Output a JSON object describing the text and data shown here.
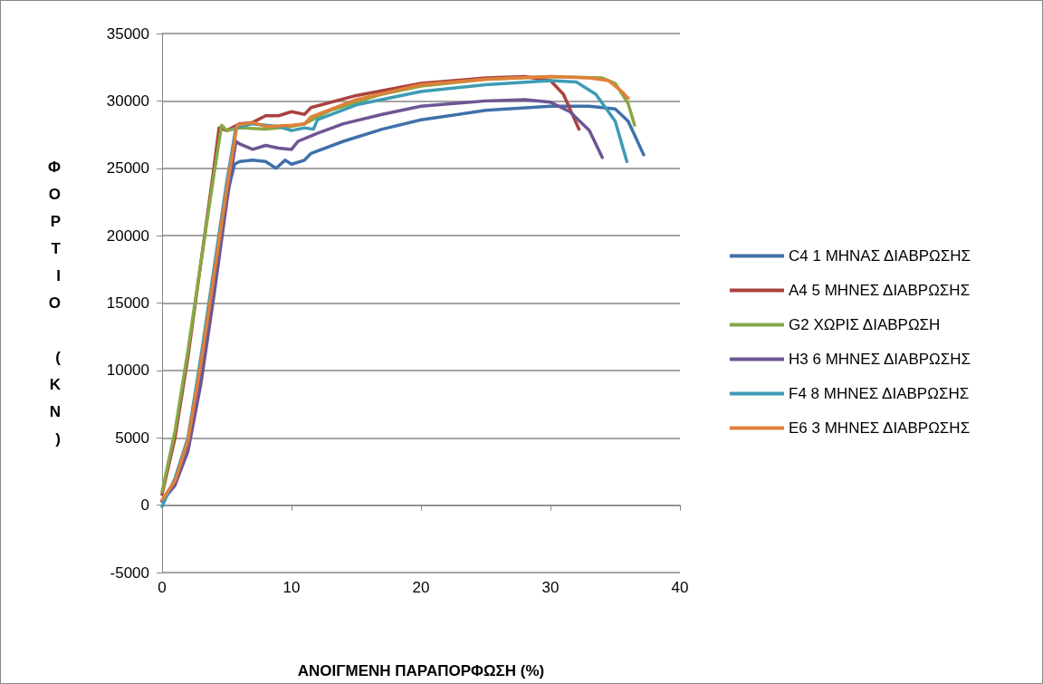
{
  "chart_data": {
    "type": "line",
    "xlabel": "ΑΝΟΙΓΜΕΝΗ ΠΑΡΑΠΟΡΦΩΣΗ (%)",
    "ylabel": "ΦΟΡΤΙΟ (ΚΝ)",
    "xlim": [
      0,
      40
    ],
    "xticks": [
      0,
      10,
      20,
      30,
      40
    ],
    "ylim": [
      -5000,
      35000
    ],
    "yticks": [
      -5000,
      0,
      5000,
      10000,
      15000,
      20000,
      25000,
      30000,
      35000
    ],
    "grid": "y",
    "legend": "right",
    "marker": "none",
    "line_style": "solid",
    "series": [
      {
        "name": "C4 1 ΜΗΝΑΣ ΔΙΑΒΡΩΣΗΣ",
        "color": "#4070aa",
        "x": [
          0,
          1,
          2,
          3,
          4,
          5,
          5.6,
          6,
          7,
          8,
          8.8,
          9.5,
          10,
          11,
          11.5,
          14,
          17,
          20,
          25,
          30,
          33,
          35,
          36,
          37.2
        ],
        "values": [
          300,
          1500,
          4500,
          10000,
          16500,
          23000,
          25300,
          25500,
          25600,
          25500,
          25000,
          25600,
          25300,
          25600,
          26100,
          27000,
          27900,
          28600,
          29300,
          29600,
          29600,
          29400,
          28500,
          26000
        ]
      },
      {
        "name": "Α4 5 ΜΗΝΕΣ ΔΙΑΒΡΩΣΗΣ",
        "color": "#aa423f",
        "x": [
          0,
          1,
          2,
          3,
          4,
          4.4,
          5,
          6,
          7,
          8,
          9,
          10,
          11,
          11.5,
          15,
          20,
          25,
          28,
          30,
          31,
          32.2
        ],
        "values": [
          800,
          5000,
          11000,
          18000,
          25000,
          28000,
          27800,
          28300,
          28400,
          28900,
          28900,
          29200,
          29000,
          29500,
          30400,
          31300,
          31700,
          31800,
          31500,
          30500,
          27900
        ]
      },
      {
        "name": "G2 ΧΩΡΙΣ ΔΙΑΒΡΩΣΗ",
        "color": "#87a845",
        "x": [
          0,
          1,
          2,
          3,
          4,
          4.6,
          5,
          6,
          8,
          10,
          11,
          13,
          17,
          20,
          25,
          30,
          34,
          35,
          36,
          36.5
        ],
        "values": [
          1000,
          5500,
          11500,
          18000,
          24500,
          28200,
          27800,
          28000,
          27900,
          28100,
          28300,
          29300,
          30500,
          31100,
          31600,
          31800,
          31700,
          31300,
          29800,
          28200
        ]
      },
      {
        "name": "Η3 6 ΜΗΝΕΣ ΔΙΑΒΡΩΣΗΣ",
        "color": "#6f5593",
        "x": [
          0,
          1,
          2,
          3,
          4,
          5,
          5.7,
          6,
          7,
          8,
          9,
          10,
          10.5,
          12,
          14,
          17,
          20,
          25,
          28,
          30,
          31.5,
          33,
          34
        ],
        "values": [
          300,
          1500,
          4000,
          9000,
          15500,
          22500,
          27000,
          26800,
          26400,
          26700,
          26500,
          26400,
          27000,
          27600,
          28300,
          29000,
          29600,
          30000,
          30100,
          29900,
          29200,
          27800,
          25800
        ]
      },
      {
        "name": "F4 8 ΜΗΝΕΣ ΔΙΑΒΡΩΣΗΣ",
        "color": "#3e9bb4",
        "x": [
          0,
          1,
          2,
          3,
          4,
          5,
          5.7,
          7,
          9,
          10,
          11,
          11.7,
          12,
          15,
          20,
          25,
          30,
          32,
          33.5,
          35,
          35.9
        ],
        "values": [
          -100,
          2000,
          5000,
          11000,
          17500,
          24000,
          28000,
          28300,
          28100,
          27800,
          28000,
          27900,
          28600,
          29700,
          30700,
          31200,
          31500,
          31400,
          30500,
          28500,
          25500
        ]
      },
      {
        "name": "Ε6 3 ΜΗΝΕΣ ΔΙΑΒΡΩΣΗΣ",
        "color": "#e0803a",
        "x": [
          0,
          1,
          2,
          3,
          4,
          5,
          5.8,
          7,
          8,
          10,
          11,
          11.5,
          15,
          20,
          25,
          30,
          33,
          34.5,
          35.5,
          36
        ],
        "values": [
          400,
          1800,
          4800,
          10500,
          17000,
          23500,
          28200,
          28400,
          28100,
          28200,
          28300,
          28800,
          30100,
          31200,
          31600,
          31800,
          31700,
          31500,
          30700,
          30200
        ]
      }
    ]
  }
}
